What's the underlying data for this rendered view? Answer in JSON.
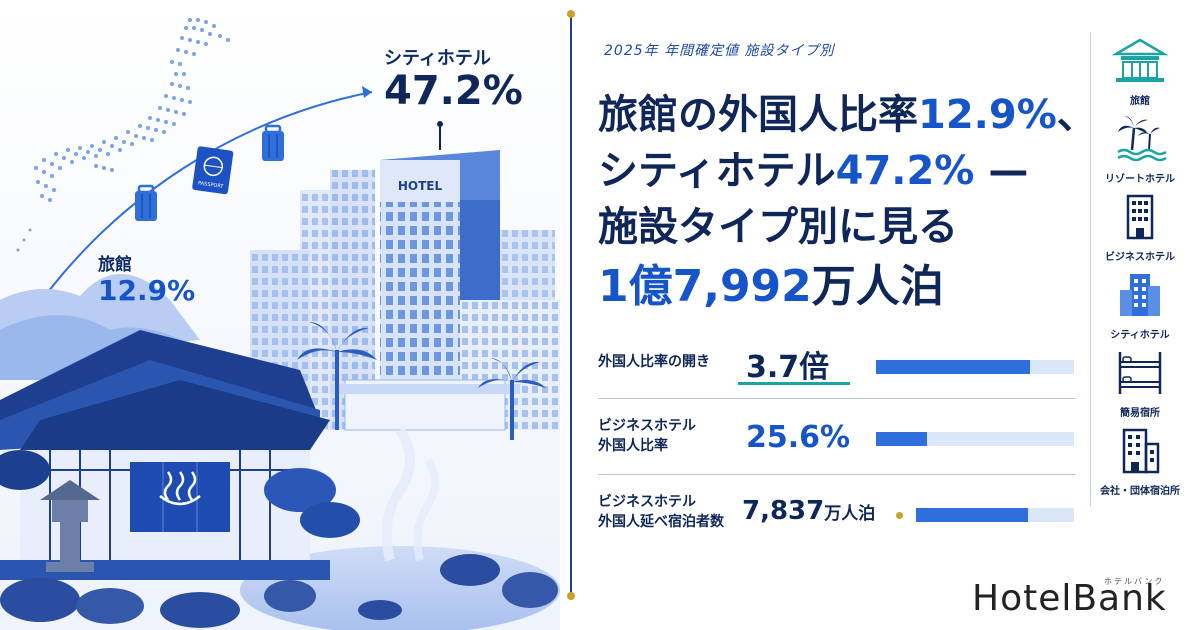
{
  "illustration": {
    "ryokan": {
      "label": "旅館",
      "value": "12.9%"
    },
    "city_hotel": {
      "label": "シティホテル",
      "value": "47.2%"
    },
    "hotel_sign": "HOTEL",
    "passport_text": "PASSPORT"
  },
  "header": {
    "subtitle": "2025年 年間確定値 施設タイプ別"
  },
  "headline": {
    "line1_prefix": "旅館の外国人比率",
    "line1_value": "12.9%",
    "line1_suffix": "、",
    "line2_prefix": "シティホテル",
    "line2_value": "47.2%",
    "line2_suffix": " —",
    "line3": "施設タイプ別に見る",
    "line4_value": "1億7,992",
    "line4_suffix": "万人泊"
  },
  "stats": [
    {
      "label": "外国人比率の開き",
      "value": "3.7倍",
      "bar_fraction": 0.78
    },
    {
      "label_line1": "ビジネスホテル",
      "label_line2": "外国人比率",
      "value": "25.6%",
      "bar_fraction": 0.26
    },
    {
      "label_line1": "ビジネスホテル",
      "label_line2": "外国人延べ宿泊者数",
      "value": "7,837",
      "value_unit": "万人泊",
      "bar_fraction": 0.71
    }
  ],
  "sidebar": {
    "items": [
      {
        "label": "旅館",
        "icon": "ryokan-icon"
      },
      {
        "label": "リゾートホテル",
        "icon": "resort-hotel-icon"
      },
      {
        "label": "ビジネスホテル",
        "icon": "business-hotel-icon"
      },
      {
        "label": "シティホテル",
        "icon": "city-hotel-icon"
      },
      {
        "label": "簡易宿所",
        "icon": "bunk-bed-icon"
      },
      {
        "label": "会社・団体宿泊所",
        "icon": "company-lodging-icon"
      }
    ]
  },
  "logo": {
    "text": "HotelBank",
    "kana": "ホテルバンク"
  },
  "colors": {
    "navy": "#0f2758",
    "blue": "#1654c9",
    "bar": "#2f6fdc",
    "bar_track": "#dbe6f8",
    "gold": "#c9a227",
    "teal": "#1ca3a3"
  }
}
